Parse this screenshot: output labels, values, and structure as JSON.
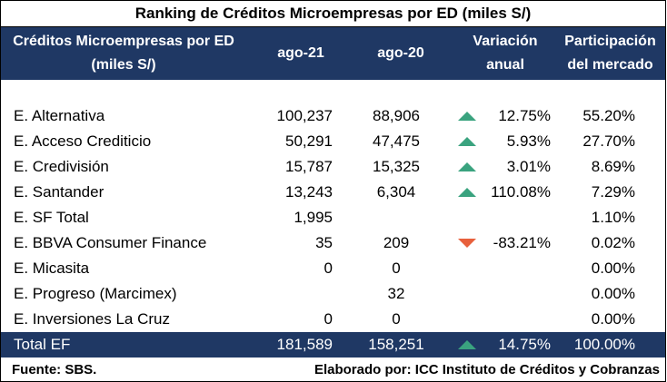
{
  "title": "Ranking de Créditos Microempresas por ED (miles S/)",
  "header": {
    "col_name": "Créditos Microempresas por ED (miles S/)",
    "col_ago21": "ago-21",
    "col_ago20": "ago-20",
    "col_var": "Variación anual",
    "col_par": "Participación del mercado"
  },
  "colors": {
    "header_bg": "#1f3864",
    "up": "#3aa37f",
    "down": "#e8603c"
  },
  "rows": [
    {
      "name": "E. Alternativa",
      "ago21": "100,237",
      "ago20": "88,906",
      "trend": "up-icon",
      "var": "12.75%",
      "par": "55.20%"
    },
    {
      "name": "E. Acceso Crediticio",
      "ago21": "50,291",
      "ago20": "47,475",
      "trend": "up-icon",
      "var": "5.93%",
      "par": "27.70%"
    },
    {
      "name": "E. Credivisión",
      "ago21": "15,787",
      "ago20": "15,325",
      "trend": "up-icon",
      "var": "3.01%",
      "par": "8.69%"
    },
    {
      "name": "E. Santander",
      "ago21": "13,243",
      "ago20": "6,304",
      "trend": "up-icon",
      "var": "110.08%",
      "par": "7.29%"
    },
    {
      "name": "E. SF Total",
      "ago21": "1,995",
      "ago20": "",
      "trend": "",
      "var": "",
      "par": "1.10%"
    },
    {
      "name": "E. BBVA Consumer Finance",
      "ago21": "35",
      "ago20": "209",
      "trend": "down-icon",
      "var": "-83.21%",
      "par": "0.02%"
    },
    {
      "name": "E. Micasita",
      "ago21": "0",
      "ago20": "0",
      "trend": "",
      "var": "",
      "par": "0.00%"
    },
    {
      "name": "E. Progreso (Marcimex)",
      "ago21": "",
      "ago20": "32",
      "trend": "",
      "var": "",
      "par": "0.00%"
    },
    {
      "name": "E. Inversiones La Cruz",
      "ago21": "0",
      "ago20": "0",
      "trend": "",
      "var": "",
      "par": "0.00%"
    }
  ],
  "total": {
    "name": "Total EF",
    "ago21": "181,589",
    "ago20": "158,251",
    "trend": "up-icon",
    "var": "14.75%",
    "par": "100.00%"
  },
  "footer": {
    "source": "Fuente: SBS.",
    "credit": "Elaborado por: ICC Instituto de Créditos y Cobranzas"
  }
}
